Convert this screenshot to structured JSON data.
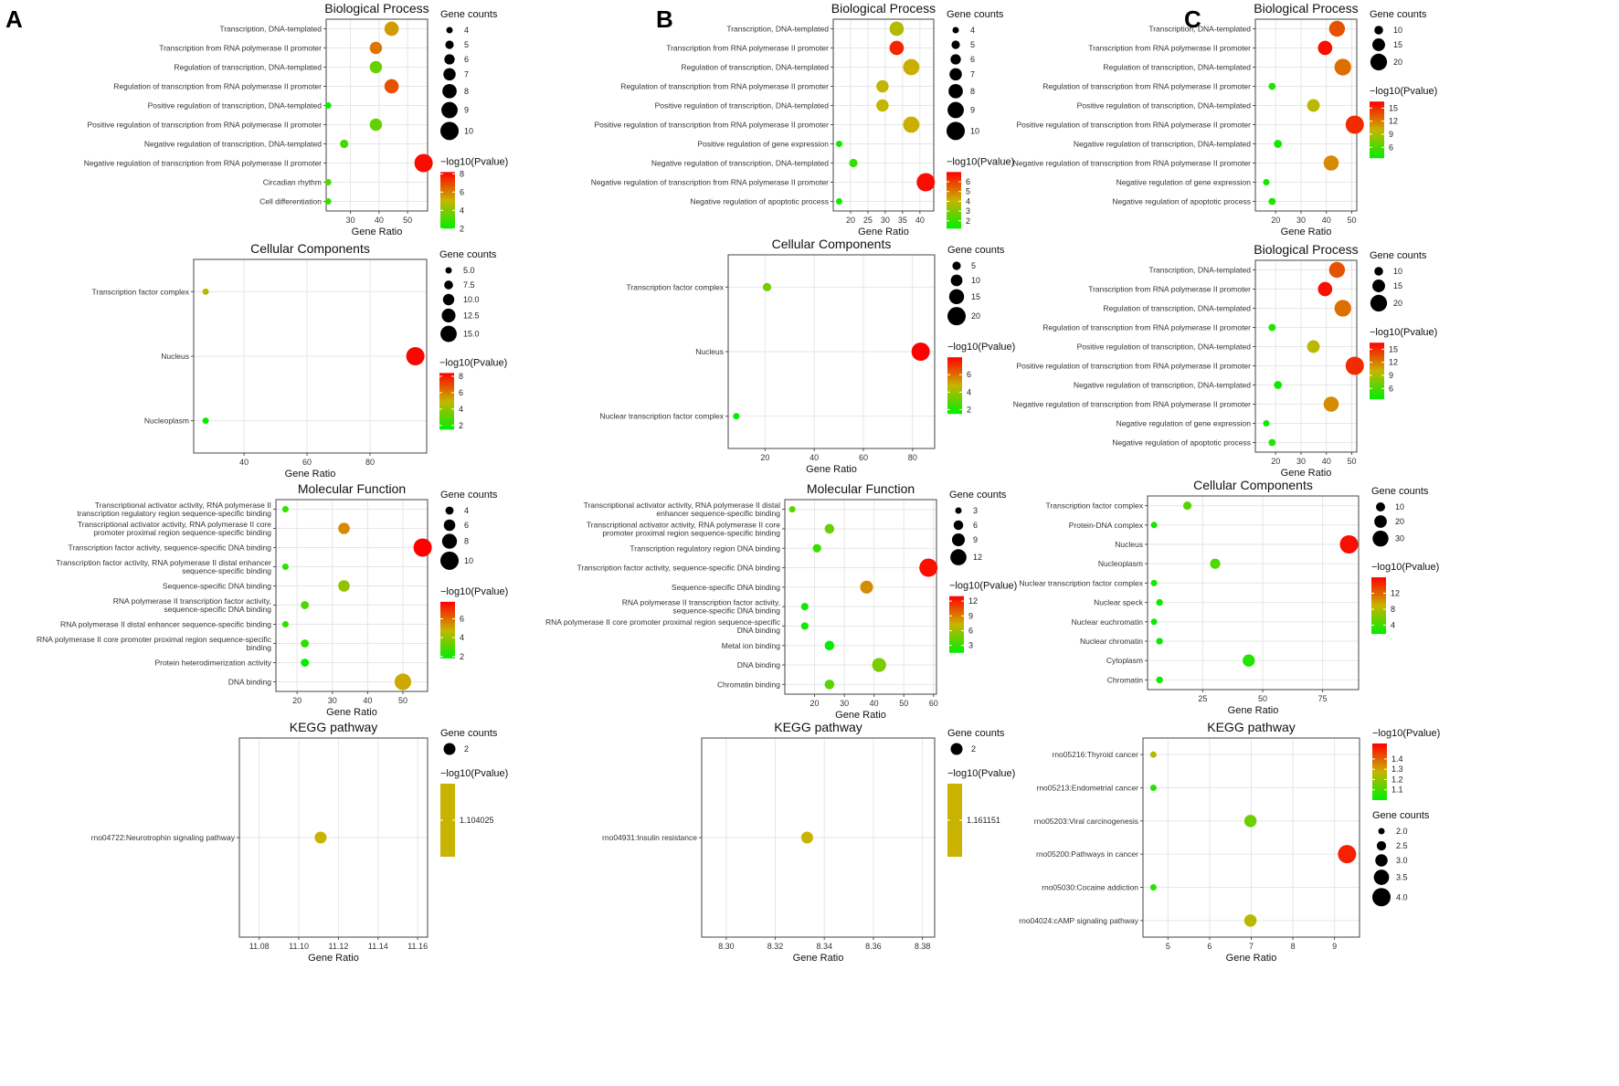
{
  "figure": {
    "panel_labels": [
      "A",
      "B",
      "C"
    ],
    "axis_label": "Gene Ratio",
    "size_legend_title": "Gene counts",
    "color_legend_title": "−log10(Pvalue)",
    "color_scale": [
      "#00ee00",
      "#c8b400",
      "#ff0000"
    ]
  },
  "chart_data": [
    {
      "id": "A-BP",
      "type": "scatter",
      "title": "Biological Process",
      "xlabel": "Gene Ratio",
      "xlim": [
        21.5,
        57
      ],
      "xticks": [
        30,
        40,
        50
      ],
      "categories": [
        "Transcription, DNA-templated",
        "Transcription from RNA polymerase II promoter",
        "Regulation of transcription, DNA-templated",
        "Regulation of transcription from RNA polymerase II promoter",
        "Positive regulation of transcription, DNA-templated",
        "Positive regulation of transcription from RNA polymerase II promoter",
        "Negative regulation of transcription, DNA-templated",
        "Negative regulation of transcription from RNA polymerase II promoter",
        "Circadian rhythm",
        "Cell differentiation"
      ],
      "x": [
        44.4,
        38.9,
        38.9,
        44.4,
        22.2,
        38.9,
        27.8,
        55.6,
        22.2,
        22.2
      ],
      "count": [
        8,
        7,
        7,
        8,
        4,
        7,
        5,
        10,
        4,
        4
      ],
      "pval": [
        5.5,
        6.2,
        3.6,
        6.8,
        1.9,
        3.5,
        3.0,
        8.0,
        3.2,
        2.8
      ],
      "size_legend": [
        4,
        5,
        6,
        7,
        8,
        9,
        10
      ],
      "size_range": [
        4,
        10
      ],
      "color_range": [
        2,
        8.2
      ],
      "color_ticks": [
        2,
        4,
        6,
        8
      ]
    },
    {
      "id": "A-CC",
      "type": "scatter",
      "title": "Cellular Components",
      "xlabel": "Gene Ratio",
      "xlim": [
        24,
        98
      ],
      "xticks": [
        40,
        60,
        80
      ],
      "categories": [
        "Transcription factor complex",
        "Nucleus",
        "Nucleoplasm"
      ],
      "x": [
        27.8,
        94.4,
        27.8
      ],
      "count": [
        5,
        17,
        5
      ],
      "pval": [
        4.6,
        8.3,
        1.6
      ],
      "size_legend": [
        "5.0",
        "7.5",
        "10.0",
        "12.5",
        "15.0"
      ],
      "size_range": [
        5,
        17
      ],
      "color_range": [
        1.5,
        8.4
      ],
      "color_ticks": [
        2,
        4,
        6,
        8
      ]
    },
    {
      "id": "A-MF",
      "type": "scatter",
      "title": "Molecular Function",
      "xlabel": "Gene Ratio",
      "xlim": [
        14,
        57
      ],
      "xticks": [
        20,
        30,
        40,
        50
      ],
      "categories": [
        "Transcriptional activator activity, RNA polymerase II transcription regulatory region sequence-specific binding",
        "Transcriptional activator activity, RNA polymerase II core promoter proximal region sequence-specific binding",
        "Transcription factor activity, sequence-specific DNA binding",
        "Transcription factor activity, RNA polymerase II distal enhancer sequence-specific binding",
        "Sequence-specific DNA binding",
        "RNA polymerase II transcription factor activity, sequence-specific DNA binding",
        "RNA polymerase II distal enhancer sequence-specific binding",
        "RNA polymerase II core promoter proximal region sequence-specific binding",
        "Protein heterodimerization activity",
        "DNA binding"
      ],
      "x": [
        16.7,
        33.3,
        55.6,
        16.7,
        33.3,
        22.2,
        16.7,
        22.2,
        22.2,
        50.0
      ],
      "count": [
        3,
        6,
        10,
        3,
        6,
        4,
        3,
        4,
        4,
        9
      ],
      "pval": [
        2.5,
        5.5,
        8.0,
        2.5,
        4.0,
        3.0,
        2.5,
        2.4,
        1.7,
        5.0
      ],
      "size_legend": [
        4,
        6,
        8,
        10
      ],
      "size_range": [
        3,
        10
      ],
      "color_range": [
        1.8,
        7.8
      ],
      "color_ticks": [
        2,
        4,
        6
      ]
    },
    {
      "id": "A-KEGG",
      "type": "scatter",
      "title": "KEGG pathway",
      "xlabel": "Gene Ratio",
      "xlim": [
        11.07,
        11.165
      ],
      "xticks": [
        "11.08",
        "11.10",
        "11.12",
        "11.14",
        "11.16"
      ],
      "categories": [
        "rno04722:Neurotrophin signaling pathway"
      ],
      "x": [
        11.111
      ],
      "count": [
        2
      ],
      "pval": [
        1.104025
      ],
      "size_legend": [
        2
      ],
      "size_range": [
        2,
        2
      ],
      "color_range": [
        1.104025,
        1.104025
      ],
      "color_ticks": [
        "1.104025"
      ],
      "single_color": true
    },
    {
      "id": "B-BP",
      "type": "scatter",
      "title": "Biological Process",
      "xlabel": "Gene Ratio",
      "xlim": [
        15,
        44
      ],
      "xticks": [
        20,
        25,
        30,
        35,
        40
      ],
      "categories": [
        "Transcription, DNA-templated",
        "Transcription from RNA polymerase II promoter",
        "Regulation of transcription, DNA-templated",
        "Regulation of transcription from RNA polymerase II promoter",
        "Positive regulation of transcription, DNA-templated",
        "Positive regulation of transcription from RNA polymerase II promoter",
        "Positive regulation of gene expression",
        "Negative regulation of transcription, DNA-templated",
        "Negative regulation of transcription from RNA polymerase II promoter",
        "Negative regulation of apoptotic process"
      ],
      "x": [
        33.3,
        33.3,
        37.5,
        29.2,
        29.2,
        37.5,
        16.7,
        20.8,
        41.7,
        16.7
      ],
      "count": [
        8,
        8,
        9,
        7,
        7,
        9,
        4,
        5,
        10,
        4
      ],
      "pval": [
        3.8,
        6.4,
        4.2,
        4.0,
        4.0,
        4.2,
        1.5,
        2.0,
        6.8,
        1.4
      ],
      "size_legend": [
        4,
        5,
        6,
        7,
        8,
        9,
        10
      ],
      "size_range": [
        4,
        10
      ],
      "color_range": [
        1.2,
        7
      ],
      "color_ticks": [
        2,
        3,
        4,
        5,
        6
      ]
    },
    {
      "id": "B-CC",
      "type": "scatter",
      "title": "Cellular Components",
      "xlabel": "Gene Ratio",
      "xlim": [
        5,
        89
      ],
      "xticks": [
        20,
        40,
        60,
        80
      ],
      "categories": [
        "Transcription factor complex",
        "Nucleus",
        "Nuclear transcription factor complex"
      ],
      "x": [
        20.8,
        83.3,
        8.3
      ],
      "count": [
        5,
        20,
        2
      ],
      "pval": [
        3.5,
        8.0,
        1.5
      ],
      "size_legend": [
        5,
        10,
        15,
        20
      ],
      "size_range": [
        2,
        20
      ],
      "color_range": [
        1.5,
        8.0
      ],
      "color_ticks": [
        2,
        4,
        6
      ]
    },
    {
      "id": "B-MF",
      "type": "scatter",
      "title": "Molecular Function",
      "xlabel": "Gene Ratio",
      "xlim": [
        10,
        61
      ],
      "xticks": [
        20,
        30,
        40,
        50,
        60
      ],
      "categories": [
        "Transcriptional activator activity, RNA polymerase II distal enhancer sequence-specific binding",
        "Transcriptional activator activity, RNA polymerase II core promoter proximal region sequence-specific binding",
        "Transcription regulatory region DNA binding",
        "Transcription factor activity, sequence-specific DNA binding",
        "Sequence-specific DNA binding",
        "RNA polymerase II transcription factor activity, sequence-specific DNA binding",
        "RNA polymerase II core promoter proximal region sequence-specific DNA binding",
        "Metal ion binding",
        "DNA binding",
        "Chromatin binding"
      ],
      "x": [
        12.5,
        25.0,
        20.8,
        58.3,
        37.5,
        16.7,
        16.7,
        25.0,
        41.7,
        25.0
      ],
      "count": [
        3,
        6,
        5,
        14,
        9,
        4,
        4,
        6,
        10,
        6
      ],
      "pval": [
        4.0,
        4.5,
        3.0,
        12.5,
        8.5,
        2.0,
        2.0,
        1.6,
        5.0,
        4.0
      ],
      "size_legend": [
        3,
        6,
        9,
        12
      ],
      "size_range": [
        3,
        14
      ],
      "color_range": [
        1.5,
        13
      ],
      "color_ticks": [
        3,
        6,
        9,
        12
      ]
    },
    {
      "id": "B-KEGG",
      "type": "scatter",
      "title": "KEGG pathway",
      "xlabel": "Gene Ratio",
      "xlim": [
        8.29,
        8.385
      ],
      "xticks": [
        "8.30",
        "8.32",
        "8.34",
        "8.36",
        "8.38"
      ],
      "categories": [
        "rno04931:Insulin resistance"
      ],
      "x": [
        8.333
      ],
      "count": [
        2
      ],
      "pval": [
        1.161151
      ],
      "size_legend": [
        2
      ],
      "size_range": [
        2,
        2
      ],
      "color_range": [
        1.161151,
        1.161151
      ],
      "color_ticks": [
        "1.161151"
      ],
      "single_color": true
    },
    {
      "id": "C-BP1",
      "type": "scatter",
      "title": "Biological Process",
      "xlabel": "Gene Ratio",
      "xlim": [
        12,
        52
      ],
      "xticks": [
        20,
        30,
        40,
        50
      ],
      "categories": [
        "Transcription, DNA-templated",
        "Transcription from RNA polymerase II promoter",
        "Regulation of transcription, DNA-templated",
        "Regulation of transcription from RNA polymerase II promoter",
        "Positive regulation of transcription, DNA-templated",
        "Positive regulation of transcription from RNA polymerase II promoter",
        "Negative regulation of transcription, DNA-templated",
        "Negative regulation of transcription from RNA polymerase II promoter",
        "Negative regulation of gene expression",
        "Negative regulation of apoptotic process"
      ],
      "x": [
        44.2,
        39.5,
        46.5,
        18.6,
        34.9,
        51.2,
        20.9,
        41.9,
        16.3,
        18.6
      ],
      "count": [
        19,
        17,
        20,
        8,
        15,
        22,
        9,
        18,
        7,
        8
      ],
      "pval": [
        13.5,
        16.0,
        12.5,
        4.5,
        9.5,
        15.0,
        4.0,
        11.5,
        4.0,
        4.5
      ],
      "size_legend": [
        10,
        15,
        20
      ],
      "size_range": [
        7,
        22
      ],
      "color_range": [
        3.5,
        16.5
      ],
      "color_ticks": [
        6,
        9,
        12,
        15
      ]
    },
    {
      "id": "C-BP2",
      "type": "scatter",
      "title": "Biological Process",
      "xlabel": "Gene Ratio",
      "xlim": [
        12,
        52
      ],
      "xticks": [
        20,
        30,
        40,
        50
      ],
      "categories": [
        "Transcription, DNA-templated",
        "Transcription from RNA polymerase II promoter",
        "Regulation of transcription, DNA-templated",
        "Regulation of transcription from RNA polymerase II promoter",
        "Positive regulation of transcription, DNA-templated",
        "Positive regulation of transcription from RNA polymerase II promoter",
        "Negative regulation of transcription, DNA-templated",
        "Negative regulation of transcription from RNA polymerase II promoter",
        "Negative regulation of gene expression",
        "Negative regulation of apoptotic process"
      ],
      "x": [
        44.2,
        39.5,
        46.5,
        18.6,
        34.9,
        51.2,
        20.9,
        41.9,
        16.3,
        18.6
      ],
      "count": [
        19,
        17,
        20,
        8,
        15,
        22,
        9,
        18,
        7,
        8
      ],
      "pval": [
        13.5,
        16.0,
        12.5,
        4.5,
        9.5,
        15.0,
        4.0,
        11.5,
        4.0,
        4.5
      ],
      "size_legend": [
        10,
        15,
        20
      ],
      "size_range": [
        7,
        22
      ],
      "color_range": [
        3.5,
        16.5
      ],
      "color_ticks": [
        6,
        9,
        12,
        15
      ]
    },
    {
      "id": "C-CC",
      "type": "scatter",
      "title": "Cellular Components",
      "xlabel": "Gene Ratio",
      "xlim": [
        2,
        90
      ],
      "xticks": [
        25,
        50,
        75
      ],
      "categories": [
        "Transcription factor complex",
        "Protein-DNA complex",
        "Nucleus",
        "Nucleoplasm",
        "Nuclear transcription factor complex",
        "Nuclear speck",
        "Nuclear euchromatin",
        "Nuclear chromatin",
        "Cytoplasm",
        "Chromatin"
      ],
      "x": [
        18.6,
        4.7,
        86.0,
        30.2,
        4.7,
        7.0,
        4.7,
        7.0,
        44.2,
        7.0
      ],
      "count": [
        8,
        2,
        37,
        13,
        2,
        3,
        2,
        3,
        19,
        3
      ],
      "pval": [
        5.0,
        2.5,
        15.5,
        4.5,
        2.3,
        2.2,
        2.0,
        2.3,
        3.0,
        2.2
      ],
      "size_legend": [
        10,
        20,
        30
      ],
      "size_range": [
        2,
        37
      ],
      "color_range": [
        1.8,
        16
      ],
      "color_ticks": [
        4,
        8,
        12
      ]
    },
    {
      "id": "C-KEGG",
      "type": "scatter",
      "title": "KEGG pathway",
      "xlabel": "Gene Ratio",
      "xlim": [
        4.4,
        9.6
      ],
      "xticks": [
        5,
        6,
        7,
        8,
        9
      ],
      "categories": [
        "rno05216:Thyroid cancer",
        "rno05213:Endometrial cancer",
        "rno05203:Viral carcinogenesis",
        "rno05200:Pathways in cancer",
        "rno05030:Cocaine addiction",
        "rno04024:cAMP signaling pathway"
      ],
      "x": [
        4.65,
        4.65,
        6.98,
        9.3,
        4.65,
        6.98
      ],
      "count": [
        2,
        2,
        3,
        4,
        2,
        3
      ],
      "pval": [
        1.25,
        1.05,
        1.15,
        1.5,
        1.05,
        1.25
      ],
      "size_legend": [
        "2.0",
        "2.5",
        "3.0",
        "3.5",
        "4.0"
      ],
      "size_range": [
        2,
        4
      ],
      "color_range": [
        1.0,
        1.55
      ],
      "color_ticks": [
        "1.1",
        "1.2",
        "1.3",
        "1.4"
      ],
      "legend_order": "color-first"
    }
  ]
}
